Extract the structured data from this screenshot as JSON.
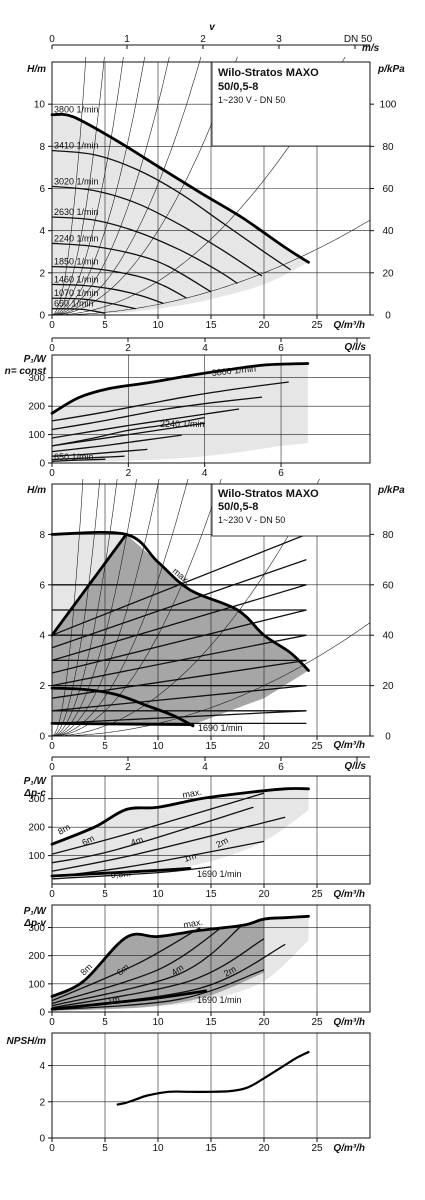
{
  "product": {
    "name": "Wilo-Stratos MAXO",
    "model": "50/0,5-8",
    "supply": "1~230 V - DN 50"
  },
  "velocity_axis": {
    "symbol": "v",
    "unit": "m/s",
    "ticks": [
      "0",
      "1",
      "2",
      "3"
    ],
    "dn_label": "DN 50"
  },
  "colors": {
    "light_area": "#e6e6e6",
    "dark_area": "#a6a6a6",
    "curve": "#000000"
  },
  "chart_data": [
    {
      "id": "h_n_const",
      "type": "line",
      "xlabel": "Q/m³/h",
      "ylabel": "H/m",
      "ylabel_right": "p/kPa",
      "secondary_x_label": "Q/l/s",
      "xlim": [
        0,
        30
      ],
      "ylim": [
        0,
        12
      ],
      "x_ticks": [
        "0",
        "5",
        "10",
        "15",
        "20",
        "25"
      ],
      "y_ticks": [
        "0",
        "2",
        "4",
        "6",
        "8",
        "10"
      ],
      "y_right_ticks": [
        "0",
        "20",
        "40",
        "60",
        "80",
        "100"
      ],
      "ls_ticks": [
        "0",
        "2",
        "4",
        "6"
      ],
      "series": [
        {
          "name": "3800 1/min",
          "x": [
            0,
            2,
            6,
            10,
            14,
            18,
            22,
            24.2
          ],
          "y": [
            9.5,
            9.4,
            8.3,
            7.05,
            5.8,
            4.6,
            3.2,
            2.5
          ]
        },
        {
          "name": "3410 1/min",
          "x": [
            0,
            4,
            8,
            12,
            16,
            20,
            22.5
          ],
          "y": [
            7.8,
            7.6,
            6.9,
            5.8,
            4.4,
            3.0,
            2.15
          ]
        },
        {
          "name": "3020 1/min",
          "x": [
            0,
            4,
            8,
            12,
            16,
            19.8
          ],
          "y": [
            6.1,
            5.9,
            5.3,
            4.3,
            3.1,
            1.85
          ]
        },
        {
          "name": "2630 1/min",
          "x": [
            0,
            4,
            8,
            12,
            15.5,
            17.5
          ],
          "y": [
            4.65,
            4.5,
            3.95,
            3.1,
            2.15,
            1.5
          ]
        },
        {
          "name": "2240 1/min",
          "x": [
            0,
            4,
            8,
            11,
            15
          ],
          "y": [
            3.4,
            3.25,
            2.85,
            2.3,
            1.1
          ]
        },
        {
          "name": "1850 1/min",
          "x": [
            0,
            4,
            8,
            10.5,
            12.7
          ],
          "y": [
            2.3,
            2.2,
            1.85,
            1.4,
            0.8
          ]
        },
        {
          "name": "1460 1/min",
          "x": [
            0,
            3,
            6,
            8.5,
            10.5
          ],
          "y": [
            1.45,
            1.4,
            1.2,
            0.9,
            0.55
          ]
        },
        {
          "name": "1070 1/min",
          "x": [
            0,
            3,
            5.5,
            7.9
          ],
          "y": [
            0.8,
            0.75,
            0.55,
            0.3
          ]
        },
        {
          "name": "650 1/min",
          "x": [
            0,
            2.5,
            4,
            5.0
          ],
          "y": [
            0.3,
            0.28,
            0.18,
            0.08
          ]
        }
      ],
      "envelope_lower": {
        "x": [
          0,
          2,
          4,
          6,
          8.5,
          12,
          15,
          20,
          24.2
        ],
        "y": [
          0.3,
          0.28,
          0.15,
          0.1,
          0.2,
          0.45,
          0.75,
          1.45,
          2.5
        ]
      }
    },
    {
      "id": "p1_n_const",
      "type": "line",
      "xlabel": "Q/l/s",
      "ylabel": "P₁/W",
      "ylabel2": "n= const",
      "xlim": [
        0,
        8.33
      ],
      "ylim": [
        0,
        380
      ],
      "x_ticks": [
        "0",
        "2",
        "4",
        "6"
      ],
      "y_ticks": [
        "0",
        "100",
        "200",
        "300"
      ],
      "series": [
        {
          "name": "3800 1/min",
          "x": [
            0,
            0.7,
            1.5,
            2.5,
            3.5,
            4.6,
            5.6,
            6.7
          ],
          "y": [
            175,
            230,
            262,
            282,
            305,
            328,
            345,
            350
          ]
        },
        {
          "name": "2240 1/min",
          "x": [
            0,
            1,
            2,
            3,
            4
          ],
          "y": [
            60,
            85,
            115,
            135,
            160
          ]
        },
        {
          "name": "650 1/min",
          "x": [
            0,
            0.5,
            1.4
          ],
          "y": [
            6,
            9,
            13
          ]
        }
      ],
      "labels": [
        "3800 1/min",
        "2240 1/min",
        "650 1/min"
      ]
    },
    {
      "id": "h_dp_modes",
      "type": "area",
      "xlabel": "Q/m³/h",
      "ylabel": "H/m",
      "ylabel_right": "p/kPa",
      "secondary_x_label": "Q/l/s",
      "xlim": [
        0,
        30
      ],
      "ylim": [
        0,
        10
      ],
      "x_ticks": [
        "0",
        "5",
        "10",
        "15",
        "20",
        "25"
      ],
      "y_ticks": [
        "0",
        "2",
        "4",
        "6",
        "8"
      ],
      "y_right_ticks": [
        "0",
        "20",
        "40",
        "60",
        "80"
      ],
      "ls_ticks": [
        "0",
        "2",
        "4",
        "6"
      ],
      "max_curve": {
        "x": [
          0,
          7,
          10,
          13,
          17.5,
          20,
          22.5,
          24.2
        ],
        "y": [
          8,
          8,
          6.9,
          5.8,
          5.0,
          4.0,
          3.3,
          2.6
        ]
      },
      "min_curve_name": "1690 1/min",
      "min_curve": {
        "x": [
          0,
          3,
          6,
          9,
          11.5,
          13.3
        ],
        "y": [
          1.9,
          1.85,
          1.65,
          1.2,
          0.8,
          0.4
        ]
      },
      "labels": [
        "max.",
        "1690 1/min"
      ]
    },
    {
      "id": "p1_dp_c",
      "type": "line",
      "xlabel": "Q/m³/h",
      "ylabel": "P₁/W",
      "ylabel2": "Δp-c",
      "xlim": [
        0,
        30
      ],
      "ylim": [
        0,
        380
      ],
      "x_ticks": [
        "0",
        "5",
        "10",
        "15",
        "20",
        "25"
      ],
      "y_ticks": [
        "100",
        "200",
        "300"
      ],
      "curve_labels": [
        "max.",
        "8m",
        "6m",
        "4m",
        "2m",
        "1m",
        "0,5m",
        "1690 1/min"
      ]
    },
    {
      "id": "p1_dp_v",
      "type": "line",
      "xlabel": "Q/m³/h",
      "ylabel": "P₁/W",
      "ylabel2": "Δp-v",
      "xlim": [
        0,
        30
      ],
      "ylim": [
        0,
        380
      ],
      "x_ticks": [
        "0",
        "5",
        "10",
        "15",
        "20",
        "25"
      ],
      "y_ticks": [
        "0",
        "100",
        "200",
        "300"
      ],
      "curve_labels": [
        "max.",
        "8m",
        "6m",
        "4m",
        "2m",
        "1m",
        "1690 1/min"
      ]
    },
    {
      "id": "npsh",
      "type": "line",
      "xlabel": "Q/m³/h",
      "ylabel": "NPSH/m",
      "xlim": [
        0,
        30
      ],
      "ylim": [
        0,
        5.8
      ],
      "x_ticks": [
        "0",
        "5",
        "10",
        "15",
        "20",
        "25"
      ],
      "y_ticks": [
        "0",
        "2",
        "4"
      ],
      "series": [
        {
          "name": "",
          "x": [
            6.2,
            7,
            8,
            9,
            11,
            13,
            15,
            17,
            18.5,
            20,
            21.5,
            23,
            24.2
          ],
          "y": [
            1.85,
            1.95,
            2.15,
            2.35,
            2.55,
            2.55,
            2.55,
            2.6,
            2.8,
            3.3,
            3.85,
            4.4,
            4.75
          ]
        }
      ]
    }
  ]
}
